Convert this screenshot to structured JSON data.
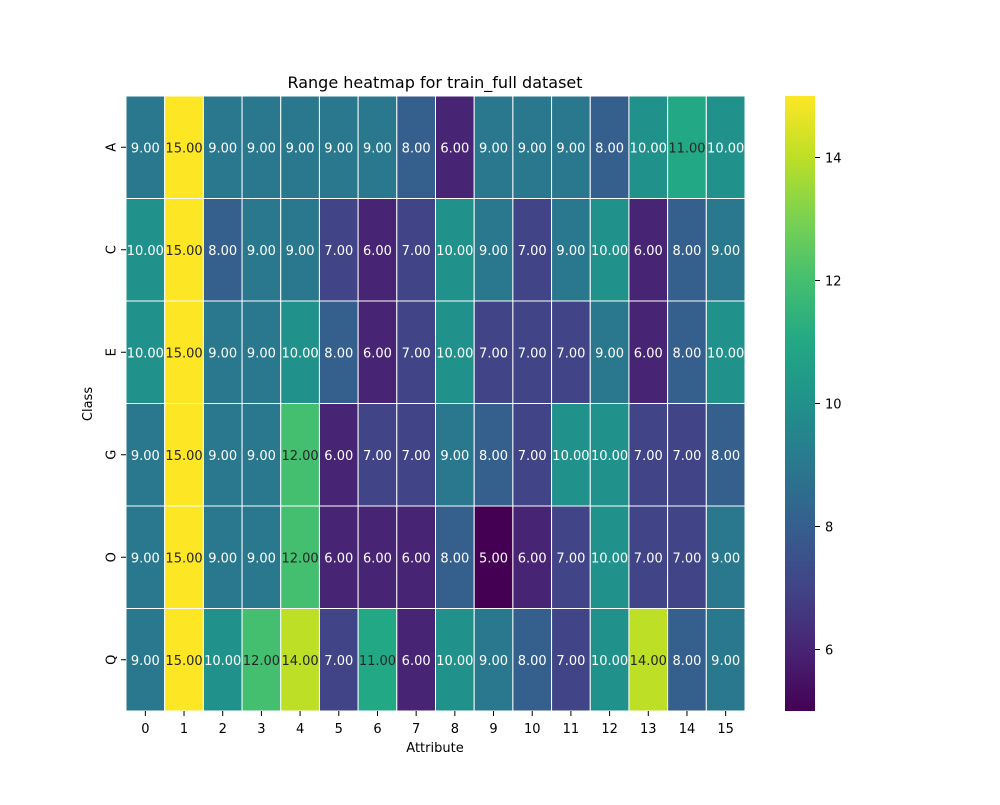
{
  "chart_data": {
    "type": "heatmap",
    "title": "Range heatmap for train_full dataset",
    "xlabel": "Attribute",
    "ylabel": "Class",
    "x_categories": [
      "0",
      "1",
      "2",
      "3",
      "4",
      "5",
      "6",
      "7",
      "8",
      "9",
      "10",
      "11",
      "12",
      "13",
      "14",
      "15"
    ],
    "y_categories": [
      "A",
      "C",
      "E",
      "G",
      "O",
      "Q"
    ],
    "values": [
      [
        9,
        15,
        9,
        9,
        9,
        9,
        9,
        8,
        6,
        9,
        9,
        9,
        8,
        10,
        11,
        10
      ],
      [
        10,
        15,
        8,
        9,
        9,
        7,
        6,
        7,
        10,
        9,
        7,
        9,
        10,
        6,
        8,
        9
      ],
      [
        10,
        15,
        9,
        9,
        10,
        8,
        6,
        7,
        10,
        7,
        7,
        7,
        9,
        6,
        8,
        10
      ],
      [
        9,
        15,
        9,
        9,
        12,
        6,
        7,
        7,
        9,
        8,
        7,
        10,
        10,
        7,
        7,
        8
      ],
      [
        9,
        15,
        9,
        9,
        12,
        6,
        6,
        6,
        8,
        5,
        6,
        7,
        10,
        7,
        7,
        9
      ],
      [
        9,
        15,
        10,
        12,
        14,
        7,
        11,
        6,
        10,
        9,
        8,
        7,
        10,
        14,
        8,
        9
      ]
    ],
    "cell_labels": [
      [
        "9.00",
        "15.00",
        "9.00",
        "9.00",
        "9.00",
        "9.00",
        "9.00",
        "8.00",
        "6.00",
        "9.00",
        "9.00",
        "9.00",
        "8.00",
        "10.00",
        "11.00",
        "10.00"
      ],
      [
        "10.00",
        "15.00",
        "8.00",
        "9.00",
        "9.00",
        "7.00",
        "6.00",
        "7.00",
        "10.00",
        "9.00",
        "7.00",
        "9.00",
        "10.00",
        "6.00",
        "8.00",
        "9.00"
      ],
      [
        "10.00",
        "15.00",
        "9.00",
        "9.00",
        "10.00",
        "8.00",
        "6.00",
        "7.00",
        "10.00",
        "7.00",
        "7.00",
        "7.00",
        "9.00",
        "6.00",
        "8.00",
        "10.00"
      ],
      [
        "9.00",
        "15.00",
        "9.00",
        "9.00",
        "12.00",
        "6.00",
        "7.00",
        "7.00",
        "9.00",
        "8.00",
        "7.00",
        "10.00",
        "10.00",
        "7.00",
        "7.00",
        "8.00"
      ],
      [
        "9.00",
        "15.00",
        "9.00",
        "9.00",
        "12.00",
        "6.00",
        "6.00",
        "6.00",
        "8.00",
        "5.00",
        "6.00",
        "7.00",
        "10.00",
        "7.00",
        "7.00",
        "9.00"
      ],
      [
        "9.00",
        "15.00",
        "10.00",
        "12.00",
        "14.00",
        "7.00",
        "11.00",
        "6.00",
        "10.00",
        "9.00",
        "8.00",
        "7.00",
        "10.00",
        "14.00",
        "8.00",
        "9.00"
      ]
    ],
    "colormap": "viridis",
    "color_range": [
      5,
      15
    ],
    "colorbar_ticks": [
      "6",
      "8",
      "10",
      "12",
      "14"
    ],
    "grid": true,
    "cell_border_color": "#ffffff"
  }
}
